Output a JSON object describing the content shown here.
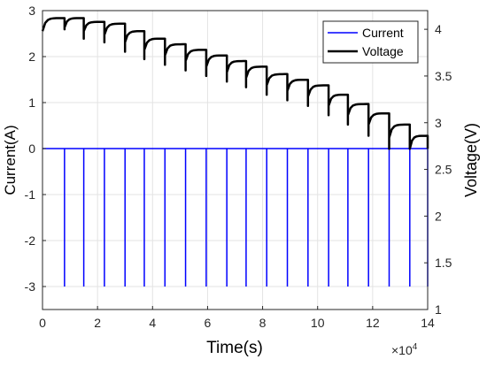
{
  "chart_data": {
    "type": "line",
    "x_label": "Time(s)",
    "x_exponent_label": "×10",
    "x_exponent_power": "4",
    "x_ticks": [
      "0",
      "2",
      "4",
      "6",
      "8",
      "10",
      "12",
      "14"
    ],
    "x_multiplier": 10000,
    "xlim": [
      0,
      140000
    ],
    "y_left_label": "Current(A)",
    "y_left_ticks": [
      "3",
      "2",
      "1",
      "0",
      "-1",
      "-2",
      "-3"
    ],
    "y_left_lim": [
      -3.5,
      3
    ],
    "y_right_label": "Voltage(V)",
    "y_right_ticks": [
      "4",
      "3.5",
      "3",
      "2.5",
      "2",
      "1.5",
      "1"
    ],
    "y_right_lim": [
      1,
      4.2
    ],
    "grid": true,
    "legend_position": "top-right",
    "series": [
      {
        "name": "Current",
        "axis": "left",
        "color": "#0000ff",
        "baseline": 0,
        "pulse_value": -3,
        "pulse_times": [
          8000,
          15000,
          22500,
          30000,
          37000,
          44500,
          52000,
          59500,
          67000,
          74000,
          81500,
          89000,
          96500,
          104000,
          111000,
          118500,
          126000,
          133500,
          140000
        ]
      },
      {
        "name": "Voltage",
        "axis": "right",
        "color": "#000000",
        "rest_levels": [
          4.12,
          4.12,
          4.08,
          4.06,
          3.98,
          3.9,
          3.84,
          3.78,
          3.72,
          3.66,
          3.6,
          3.52,
          3.46,
          3.4,
          3.3,
          3.2,
          3.1,
          2.98,
          2.86,
          2.72
        ],
        "relaxed_start": [
          3.98,
          4.02,
          3.98,
          3.94,
          3.86,
          3.78,
          3.72,
          3.66,
          3.6,
          3.54,
          3.48,
          3.4,
          3.34,
          3.28,
          3.18,
          3.08,
          2.98,
          2.84,
          2.72,
          2.74
        ],
        "drop_min": [
          4.0,
          3.9,
          3.86,
          3.76,
          3.68,
          3.62,
          3.56,
          3.5,
          3.44,
          3.38,
          3.3,
          3.24,
          3.18,
          3.08,
          2.98,
          2.86,
          2.72,
          2.72
        ]
      }
    ]
  }
}
